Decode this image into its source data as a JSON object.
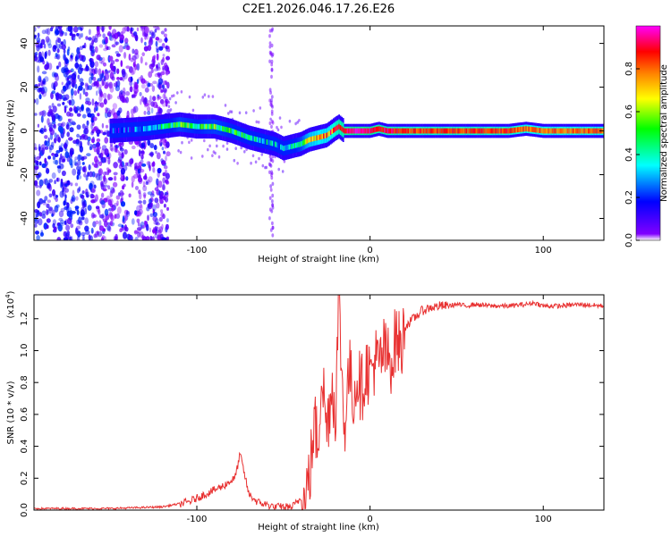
{
  "title": "C2E1.2026.046.17.26.E26",
  "chart_data": [
    {
      "type": "heatmap",
      "name": "spectrogram",
      "xlabel": "Height of straight line (km)",
      "ylabel": "Frequency (Hz)",
      "xlim": [
        -194,
        135
      ],
      "ylim": [
        -50,
        48
      ],
      "xticks": [
        -100,
        0,
        100
      ],
      "yticks": [
        -40,
        -20,
        0,
        20,
        40
      ],
      "ridge": {
        "x": [
          -150,
          -130,
          -110,
          -100,
          -90,
          -80,
          -70,
          -60,
          -55,
          -50,
          -45,
          -40,
          -35,
          -30,
          -25,
          -20,
          -18,
          -15,
          -10,
          -5,
          0,
          5,
          10,
          20,
          40,
          60,
          80,
          90,
          100,
          120,
          135
        ],
        "y": [
          0,
          1,
          3,
          2,
          2,
          0,
          -3,
          -5,
          -6,
          -8,
          -7,
          -6,
          -4,
          -3,
          -2,
          1,
          2,
          0,
          0,
          0,
          0,
          1,
          0,
          0,
          0,
          0,
          0,
          1,
          0,
          0,
          0
        ],
        "amplitude": [
          0.15,
          0.25,
          0.5,
          0.45,
          0.5,
          0.45,
          0.4,
          0.35,
          0.3,
          0.35,
          0.4,
          0.5,
          0.7,
          0.75,
          0.75,
          0.85,
          0.9,
          0.9,
          0.95,
          0.95,
          0.95,
          0.9,
          0.9,
          0.85,
          0.85,
          0.85,
          0.85,
          0.8,
          0.8,
          0.8,
          0.8
        ]
      }
    },
    {
      "type": "colorbar",
      "name": "colorbar",
      "label": "Normalized spectral amplitude",
      "range": [
        0,
        1
      ],
      "ticks": [
        0.0,
        0.2,
        0.4,
        0.6,
        0.8
      ],
      "tick_labels": [
        "0.0",
        "0.2",
        "0.4",
        "0.6",
        "0.8"
      ],
      "colors": [
        "#ffffff",
        "#8000ff",
        "#0000ff",
        "#00ffff",
        "#00ff00",
        "#ffff00",
        "#ff8000",
        "#ff0000",
        "#ff00ff"
      ]
    },
    {
      "type": "line",
      "name": "snr",
      "xlabel": "Height of straight line (km)",
      "ylabel": "SNR (10 * v/v)",
      "scale_label": "(x10",
      "scale_exp": "4",
      "scale_suffix": ")",
      "color": "#e83030",
      "xlim": [
        -194,
        135
      ],
      "ylim": [
        0,
        1.35
      ],
      "xticks": [
        -100,
        0,
        100
      ],
      "yticks": [
        0.0,
        0.2,
        0.4,
        0.6,
        0.8,
        1.0,
        1.2
      ],
      "ytick_labels": [
        "0.0",
        "0.2",
        "0.4",
        "0.6",
        "0.8",
        "1.0",
        "1.2"
      ],
      "x": [
        -194,
        -150,
        -120,
        -105,
        -95,
        -85,
        -78,
        -75,
        -70,
        -65,
        -55,
        -45,
        -42,
        -38,
        -35,
        -32,
        -30,
        -28,
        -25,
        -22,
        -20,
        -18,
        -15,
        -12,
        -10,
        -7,
        -5,
        -2,
        0,
        3,
        5,
        8,
        10,
        13,
        15,
        18,
        20,
        25,
        30,
        35,
        40,
        45,
        50,
        55,
        60,
        70,
        80,
        90,
        95,
        100,
        110,
        120,
        135
      ],
      "y": [
        0.01,
        0.01,
        0.02,
        0.05,
        0.1,
        0.15,
        0.2,
        0.35,
        0.1,
        0.05,
        0.02,
        0.02,
        0.05,
        0.1,
        0.2,
        0.55,
        0.4,
        0.9,
        0.5,
        0.8,
        0.6,
        1.35,
        0.5,
        0.9,
        0.7,
        0.85,
        0.75,
        0.9,
        0.85,
        0.95,
        0.9,
        1.0,
        0.95,
        0.95,
        1.1,
        1.0,
        1.15,
        1.2,
        1.25,
        1.27,
        1.28,
        1.28,
        1.29,
        1.28,
        1.29,
        1.28,
        1.28,
        1.29,
        1.3,
        1.28,
        1.28,
        1.29,
        1.28
      ]
    }
  ]
}
